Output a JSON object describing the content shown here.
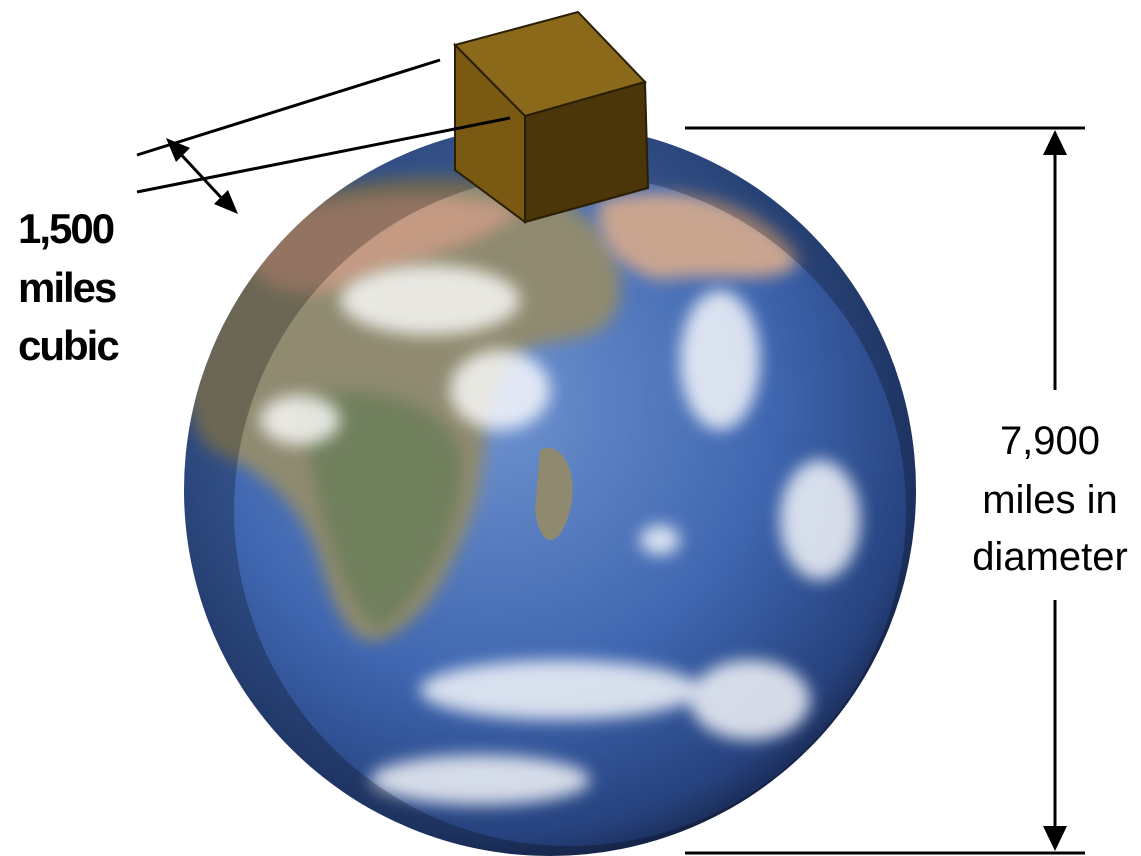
{
  "cube_label": {
    "lines": [
      "1,500",
      "miles",
      "cubic"
    ]
  },
  "earth_label": {
    "lines": [
      "7,900",
      "miles in",
      "diameter"
    ]
  }
}
